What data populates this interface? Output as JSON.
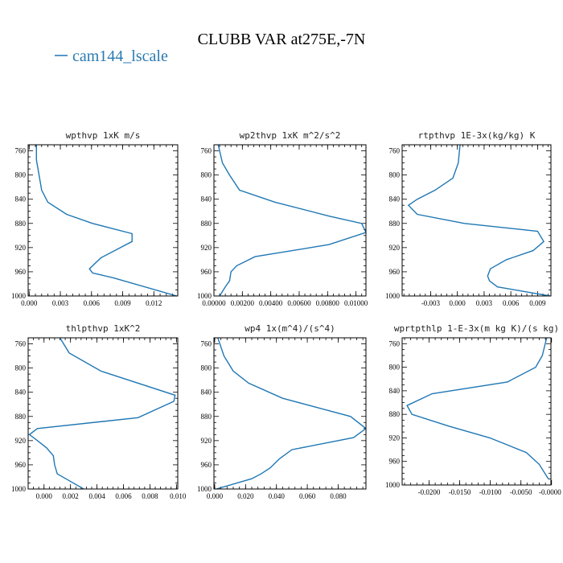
{
  "figure": {
    "title": "CLUBB VAR at275E,-7N",
    "legend": [
      {
        "label": "cam144_lscale",
        "color": "#1f77b4"
      }
    ]
  },
  "chart_data": [
    {
      "type": "line",
      "title": "wpthvp  1xK m/s",
      "xlim": [
        -0.0001,
        0.0143
      ],
      "ylim": [
        1000,
        750
      ],
      "xticks": [
        0.0,
        0.003,
        0.006,
        0.009,
        0.012
      ],
      "xtick_labels": [
        "0.000",
        "0.003",
        "0.006",
        "0.009",
        "0.012"
      ],
      "yticks": [
        760,
        800,
        840,
        880,
        920,
        960,
        1000
      ],
      "ytick_labels": [
        "760",
        "800",
        "840",
        "880",
        "920",
        "960",
        "1000"
      ],
      "series": [
        {
          "color": "#1f77b4",
          "x": [
            0.0007,
            0.0007,
            0.0012,
            0.0018,
            0.0036,
            0.0061,
            0.0099,
            0.0099,
            0.0069,
            0.0058,
            0.0061,
            0.0081,
            0.0142
          ],
          "y": [
            750,
            775,
            825,
            845,
            865,
            880,
            897,
            910,
            937,
            955,
            962,
            970,
            1000
          ]
        }
      ]
    },
    {
      "type": "line",
      "title": "wp2thvp  1xK m^2/s^2",
      "xlim": [
        0.0,
        0.0107
      ],
      "ylim": [
        1000,
        750
      ],
      "xticks": [
        0.0,
        0.002,
        0.004,
        0.006,
        0.008,
        0.01
      ],
      "xtick_labels": [
        "0.00000",
        "0.00200",
        "0.00400",
        "0.00600",
        "0.00800",
        "0.01000"
      ],
      "yticks": [
        760,
        800,
        840,
        880,
        920,
        960,
        1000
      ],
      "ytick_labels": [
        "760",
        "800",
        "840",
        "880",
        "920",
        "960",
        "1000"
      ],
      "series": [
        {
          "color": "#1f77b4",
          "x": [
            0.0003,
            0.0006,
            0.0011,
            0.0018,
            0.0043,
            0.0081,
            0.0104,
            0.0107,
            0.0081,
            0.0029,
            0.0016,
            0.0012,
            0.0011,
            0.0008,
            0.0004
          ],
          "y": [
            750,
            780,
            800,
            825,
            845,
            868,
            880,
            895,
            915,
            935,
            950,
            960,
            975,
            985,
            1000
          ]
        }
      ]
    },
    {
      "type": "line",
      "title": "rtpthvp  1E-3x(kg/kg) K",
      "xlim": [
        -0.0062,
        0.0105
      ],
      "ylim": [
        1000,
        750
      ],
      "xticks": [
        -0.003,
        0.0,
        0.003,
        0.006,
        0.009
      ],
      "xtick_labels": [
        "-0.003",
        "0.000",
        "0.003",
        "0.006",
        "0.009"
      ],
      "yticks": [
        760,
        800,
        840,
        880,
        920,
        960,
        1000
      ],
      "ytick_labels": [
        "760",
        "800",
        "840",
        "880",
        "920",
        "960",
        "1000"
      ],
      "series": [
        {
          "color": "#1f77b4",
          "x": [
            0.0003,
            0.0001,
            -0.0005,
            -0.0025,
            -0.0045,
            -0.0055,
            -0.0045,
            0.0008,
            0.009,
            0.0097,
            0.0085,
            0.0055,
            0.0037,
            0.0034,
            0.0036,
            0.0045,
            0.0104
          ],
          "y": [
            750,
            780,
            805,
            825,
            840,
            850,
            865,
            880,
            893,
            910,
            925,
            940,
            955,
            967,
            975,
            985,
            1000
          ]
        }
      ]
    },
    {
      "type": "line",
      "title": "thlpthvp  1xK^2",
      "xlim": [
        -0.0012,
        0.0101
      ],
      "ylim": [
        1000,
        750
      ],
      "xticks": [
        0.0,
        0.002,
        0.004,
        0.006,
        0.008,
        0.01
      ],
      "xtick_labels": [
        "0.000",
        "0.002",
        "0.004",
        "0.006",
        "0.008",
        "0.010"
      ],
      "yticks": [
        760,
        800,
        840,
        880,
        920,
        960,
        1000
      ],
      "ytick_labels": [
        "760",
        "800",
        "840",
        "880",
        "920",
        "960",
        "1000"
      ],
      "series": [
        {
          "color": "#1f77b4",
          "x": [
            0.0012,
            0.0019,
            0.0043,
            0.0099,
            0.0098,
            0.0071,
            -0.0005,
            -0.0011,
            -0.0005,
            0.0002,
            0.0007,
            0.0008,
            0.001,
            0.0018,
            0.003
          ],
          "y": [
            750,
            775,
            805,
            845,
            855,
            882,
            900,
            910,
            920,
            932,
            945,
            960,
            975,
            985,
            1000
          ]
        }
      ]
    },
    {
      "type": "line",
      "title": "wp4  1x(m^4)/(s^4)",
      "xlim": [
        -0.0005,
        0.098
      ],
      "ylim": [
        1000,
        750
      ],
      "xticks": [
        0.0,
        0.02,
        0.04,
        0.06,
        0.08
      ],
      "xtick_labels": [
        "0.000",
        "0.020",
        "0.040",
        "0.060",
        "0.080"
      ],
      "yticks": [
        760,
        800,
        840,
        880,
        920,
        960,
        1000
      ],
      "ytick_labels": [
        "760",
        "800",
        "840",
        "880",
        "920",
        "960",
        "1000"
      ],
      "series": [
        {
          "color": "#1f77b4",
          "x": [
            0.002,
            0.006,
            0.012,
            0.022,
            0.044,
            0.088,
            0.098,
            0.09,
            0.05,
            0.042,
            0.036,
            0.03,
            0.024,
            0.001
          ],
          "y": [
            750,
            780,
            805,
            825,
            850,
            880,
            900,
            915,
            935,
            950,
            965,
            975,
            983,
            1000
          ]
        }
      ]
    },
    {
      "type": "line",
      "title": "wprtpthlp  1-E-3x(m kg K)/(s kg)",
      "xlim": [
        -0.0244,
        -0.0001
      ],
      "ylim": [
        1000,
        750
      ],
      "xticks": [
        -0.02,
        -0.015,
        -0.01,
        -0.005,
        0.0
      ],
      "xtick_labels": [
        "-0.0200",
        "-0.0150",
        "-0.0100",
        "-0.0050",
        "-0.0000"
      ],
      "yticks": [
        760,
        800,
        840,
        880,
        920,
        960,
        1000
      ],
      "ytick_labels": [
        "760",
        "800",
        "840",
        "880",
        "920",
        "960",
        "1000"
      ],
      "series": [
        {
          "color": "#1f77b4",
          "x": [
            -0.0008,
            -0.0015,
            -0.0026,
            -0.0072,
            -0.0195,
            -0.0236,
            -0.0228,
            -0.0168,
            -0.0101,
            -0.0041,
            -0.002,
            -0.0005
          ],
          "y": [
            750,
            780,
            800,
            825,
            845,
            865,
            880,
            900,
            920,
            945,
            965,
            990
          ]
        }
      ]
    }
  ]
}
